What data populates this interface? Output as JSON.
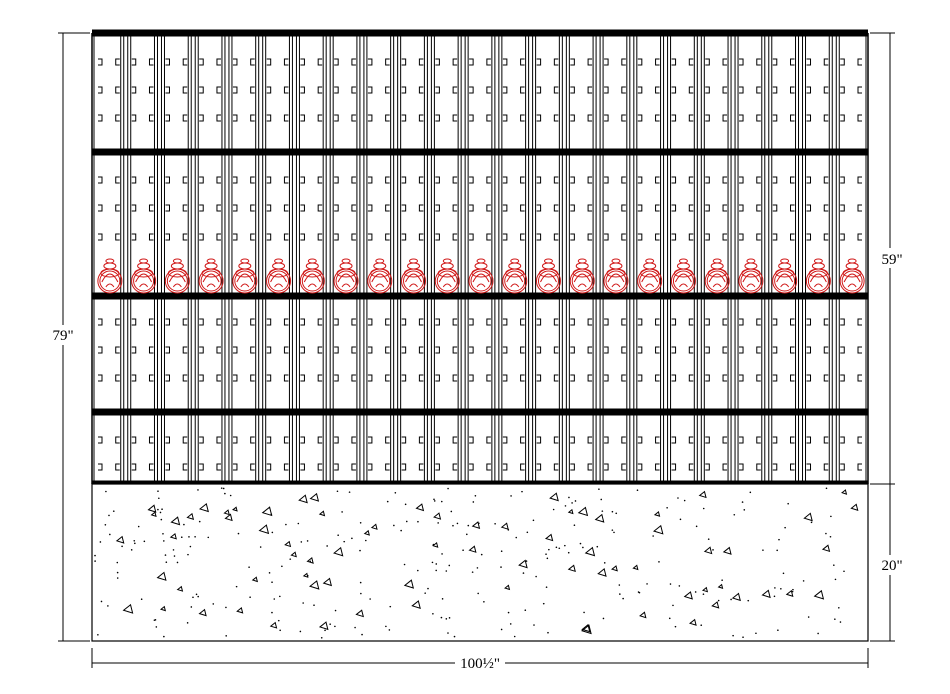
{
  "dimensions": {
    "total_height": "79\"",
    "upper_height": "59\"",
    "base_height": "20\"",
    "width": "100½\""
  }
}
